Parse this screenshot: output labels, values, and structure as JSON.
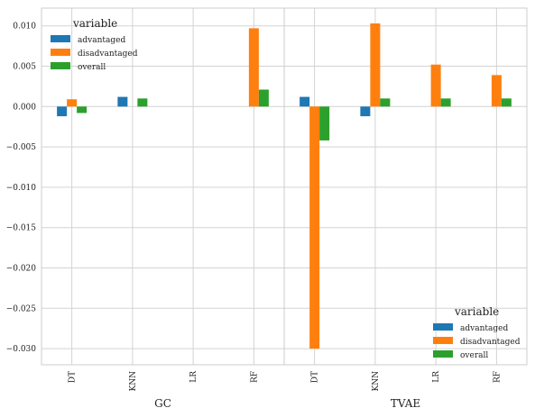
{
  "chart_data": [
    {
      "type": "bar",
      "panel": "GC",
      "xlabel": "GC",
      "categories": [
        "DT",
        "KNN",
        "LR",
        "RF"
      ],
      "series": [
        {
          "name": "advantaged",
          "color": "#1f77b4",
          "values": [
            -0.0012,
            0.0012,
            0.0,
            0.0
          ]
        },
        {
          "name": "disadvantaged",
          "color": "#ff7f0e",
          "values": [
            0.0009,
            0.0,
            0.0,
            0.0097
          ]
        },
        {
          "name": "overall",
          "color": "#2ca02c",
          "values": [
            -0.0008,
            0.001,
            0.0,
            0.0021
          ]
        }
      ],
      "legend": {
        "title": "variable",
        "position": "top-left"
      },
      "ylim": [
        -0.032,
        0.0122
      ],
      "yticks": [
        "0.010",
        "0.005",
        "0.000",
        "−0.005",
        "−0.010",
        "−0.015",
        "−0.020",
        "−0.025",
        "−0.030"
      ],
      "grid": true
    },
    {
      "type": "bar",
      "panel": "TVAE",
      "xlabel": "TVAE",
      "categories": [
        "DT",
        "KNN",
        "LR",
        "RF"
      ],
      "series": [
        {
          "name": "advantaged",
          "color": "#1f77b4",
          "values": [
            0.0012,
            -0.0012,
            0.0,
            0.0
          ]
        },
        {
          "name": "disadvantaged",
          "color": "#ff7f0e",
          "values": [
            -0.03,
            0.0103,
            0.0052,
            0.0039
          ]
        },
        {
          "name": "overall",
          "color": "#2ca02c",
          "values": [
            -0.0042,
            0.001,
            0.001,
            0.001
          ]
        }
      ],
      "legend": {
        "title": "variable",
        "position": "bottom-right"
      },
      "ylim": [
        -0.032,
        0.0122
      ],
      "grid": true
    }
  ]
}
